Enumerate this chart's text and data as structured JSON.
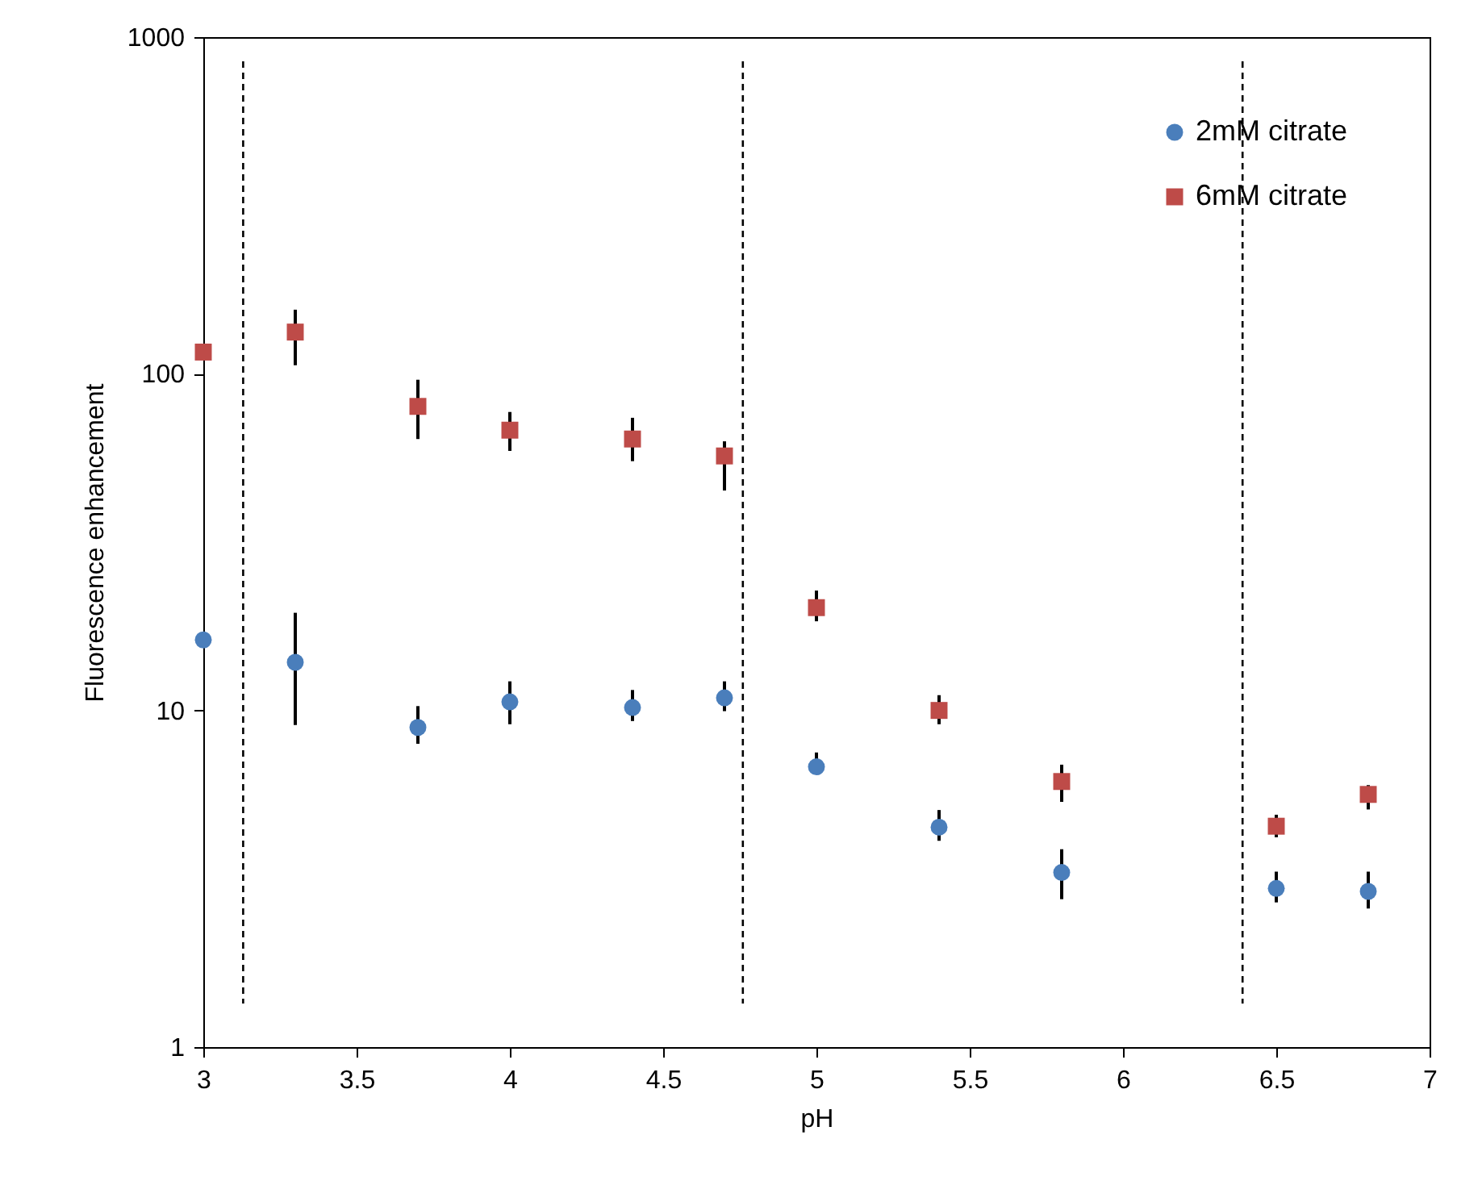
{
  "chart_data": {
    "type": "scatter",
    "xlabel": "pH",
    "ylabel": "Fluorescence enhancement",
    "log": "y",
    "xlim": [
      3,
      7
    ],
    "xticks": [
      3,
      3.5,
      4,
      4.5,
      5,
      5.5,
      6,
      6.5,
      7
    ],
    "ylim": [
      1,
      1000
    ],
    "yticks": [
      1,
      10,
      100,
      1000
    ],
    "grid": false,
    "legend": "top right",
    "x": [
      3,
      3.3,
      3.7,
      4,
      4.4,
      4.7,
      5,
      5.4,
      5.8,
      6.5,
      6.8
    ],
    "series": [
      {
        "name": "2mM citrate",
        "color": "#4a7ebb",
        "marker": "circle",
        "values": [
          16.2,
          13.9,
          8.9,
          10.6,
          10.2,
          10.9,
          6.8,
          4.5,
          3.3,
          2.96,
          2.9
        ],
        "errors": [
          null,
          [
            9.05,
            19.5
          ],
          [
            7.96,
            10.3
          ],
          [
            9.1,
            12.2
          ],
          [
            9.3,
            11.5
          ],
          [
            9.95,
            12.2
          ],
          [
            6.6,
            7.5
          ],
          [
            4.1,
            5.06
          ],
          [
            2.75,
            3.87
          ],
          [
            2.69,
            3.32
          ],
          [
            2.58,
            3.32
          ]
        ]
      },
      {
        "name": "6mM citrate",
        "color": "#be4b48",
        "marker": "square",
        "values": [
          116,
          133,
          80,
          68,
          64,
          57,
          20.2,
          10,
          6.15,
          4.53,
          5.63
        ],
        "errors": [
          null,
          [
            106,
            155
          ],
          [
            64,
            96
          ],
          [
            59,
            77
          ],
          [
            55,
            74
          ],
          [
            45,
            63
          ],
          [
            18.4,
            22.7
          ],
          [
            9.1,
            11.1
          ],
          [
            5.35,
            6.9
          ],
          [
            4.2,
            4.9
          ],
          [
            5.08,
            6.0
          ]
        ]
      }
    ],
    "ref_lines": [
      {
        "axis": "x",
        "value": 3.13,
        "line_style": "dashed"
      },
      {
        "axis": "x",
        "value": 4.76,
        "line_style": "dashed"
      },
      {
        "axis": "x",
        "value": 6.39,
        "line_style": "dashed"
      }
    ]
  }
}
